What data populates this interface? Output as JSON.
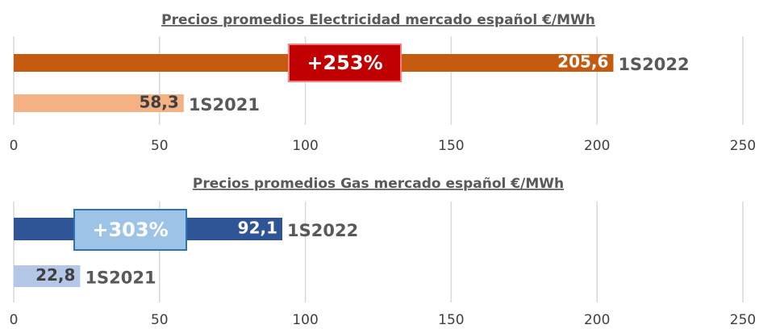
{
  "chart_data": [
    {
      "type": "bar",
      "orientation": "horizontal",
      "title": "Precios promedios Electricidad mercado español €/MWh",
      "categories": [
        "1S2022",
        "1S2021"
      ],
      "values": [
        205.6,
        58.3
      ],
      "value_labels": [
        "205,6",
        "58,3"
      ],
      "colors": [
        "#c55a11",
        "#f4b183"
      ],
      "xlim": [
        0,
        250
      ],
      "xticks": [
        0,
        50,
        100,
        150,
        200,
        250
      ],
      "grid": true,
      "annotation": "+253%",
      "annotation_color": "#c00000"
    },
    {
      "type": "bar",
      "orientation": "horizontal",
      "title": "Precios promedios Gas mercado español €/MWh",
      "categories": [
        "1S2022",
        "1S2021"
      ],
      "values": [
        92.1,
        22.8
      ],
      "value_labels": [
        "92,1",
        "22,8"
      ],
      "colors": [
        "#2f5597",
        "#b4c7e7"
      ],
      "xlim": [
        0,
        250
      ],
      "xticks": [
        0,
        50,
        100,
        150,
        200,
        250
      ],
      "grid": true,
      "annotation": "+303%",
      "annotation_color": "#9dc3e6"
    }
  ]
}
